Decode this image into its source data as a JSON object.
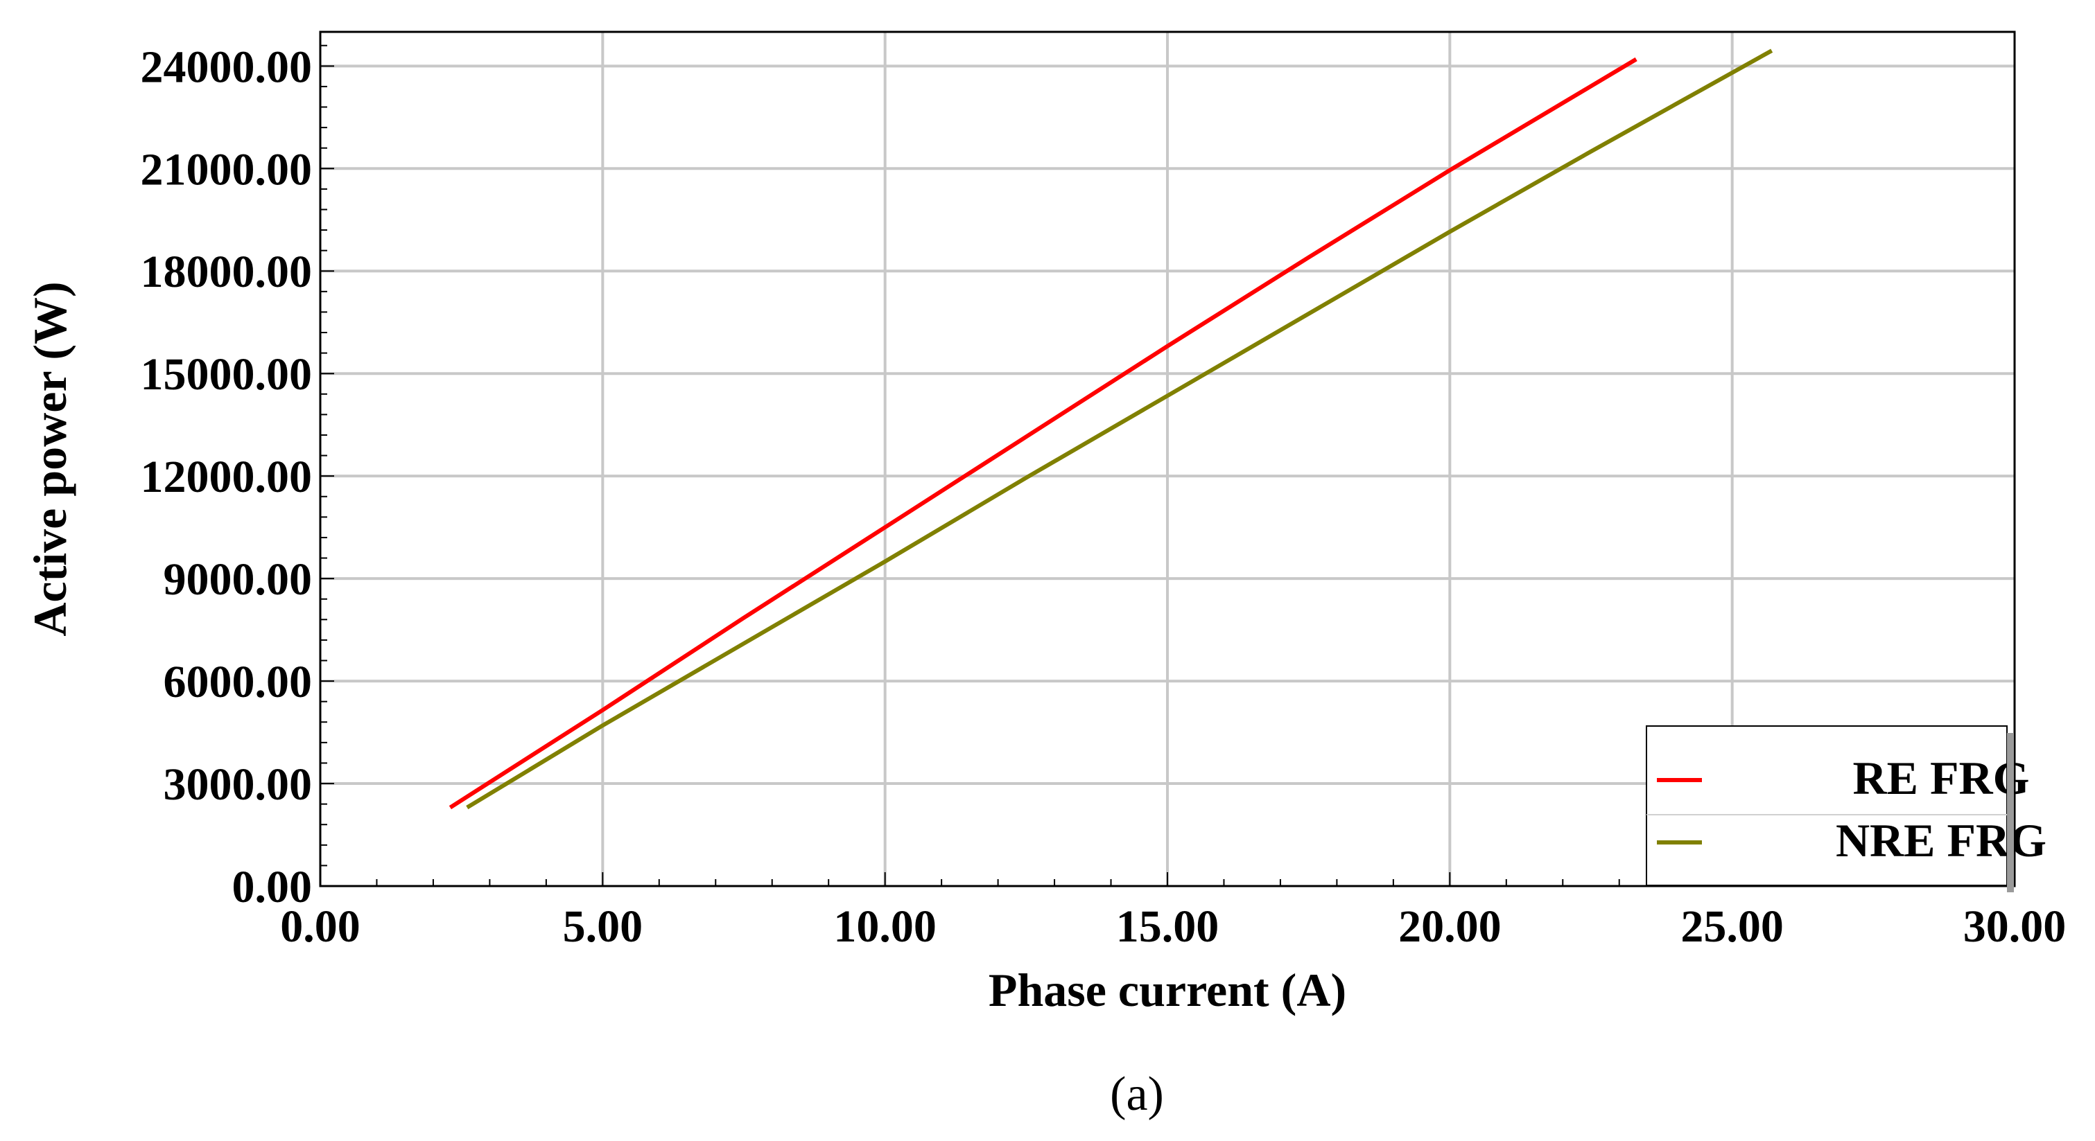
{
  "caption": "(a)",
  "chart_data": {
    "type": "line",
    "title": "",
    "xlabel": "Phase current (A)",
    "ylabel": "Active power (W)",
    "xlim": [
      0,
      30
    ],
    "ylim": [
      0,
      25000
    ],
    "x_ticks": [
      0,
      5,
      10,
      15,
      20,
      25,
      30
    ],
    "x_tick_labels": [
      "0.00",
      "5.00",
      "10.00",
      "15.00",
      "20.00",
      "25.00",
      "30.00"
    ],
    "y_ticks": [
      0,
      3000,
      6000,
      9000,
      12000,
      15000,
      18000,
      21000,
      24000
    ],
    "y_tick_labels": [
      "0.00",
      "3000.00",
      "6000.00",
      "9000.00",
      "12000.00",
      "15000.00",
      "18000.00",
      "21000.00",
      "24000.00"
    ],
    "grid": true,
    "legend_position": "bottom-right",
    "series": [
      {
        "name": "RE FRG",
        "color": "#ff0000",
        "x": [
          2.3,
          5.0,
          7.5,
          10.0,
          12.5,
          15.0,
          17.5,
          20.0,
          23.3
        ],
        "y": [
          2300,
          5150,
          7850,
          10500,
          13150,
          15800,
          18400,
          20950,
          24200
        ]
      },
      {
        "name": "NRE FRG",
        "color": "#808000",
        "x": [
          2.6,
          5.0,
          7.5,
          10.0,
          12.5,
          15.0,
          17.5,
          20.0,
          22.5,
          25.7
        ],
        "y": [
          2300,
          4700,
          7100,
          9500,
          11950,
          14350,
          16750,
          19150,
          21500,
          24450
        ]
      }
    ]
  }
}
